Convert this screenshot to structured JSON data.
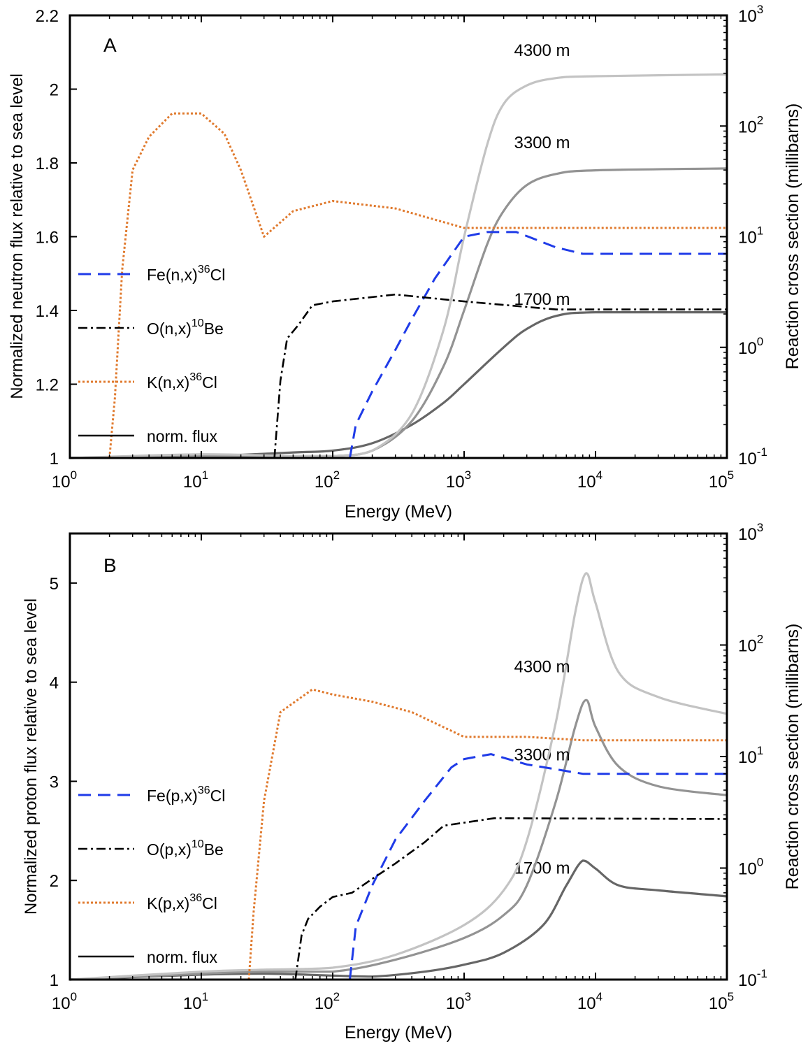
{
  "chart_data": [
    {
      "type": "line",
      "panel_label": "A",
      "xlabel": "Energy (MeV)",
      "ylabel": "Normalized neutron flux relative to sea level",
      "y2label": "Reaction cross section (millibarns)",
      "x_scale": "log",
      "xlim": [
        1,
        100000
      ],
      "ylim": [
        1,
        2.2
      ],
      "y2_scale": "log",
      "y2lim": [
        0.1,
        1000
      ],
      "x_ticks": [
        {
          "v": 1,
          "m": "10",
          "e": "0"
        },
        {
          "v": 10,
          "m": "10",
          "e": "1"
        },
        {
          "v": 100,
          "m": "10",
          "e": "2"
        },
        {
          "v": 1000,
          "m": "10",
          "e": "3"
        },
        {
          "v": 10000,
          "m": "10",
          "e": "4"
        },
        {
          "v": 100000,
          "m": "10",
          "e": "5"
        }
      ],
      "y_ticks": [
        {
          "v": 1,
          "t": "1"
        },
        {
          "v": 1.2,
          "t": "1.2"
        },
        {
          "v": 1.4,
          "t": "1.4"
        },
        {
          "v": 1.6,
          "t": "1.6"
        },
        {
          "v": 1.8,
          "t": "1.8"
        },
        {
          "v": 2,
          "t": "2"
        },
        {
          "v": 2.2,
          "t": "2.2"
        }
      ],
      "y2_ticks": [
        {
          "v": 0.1,
          "m": "10",
          "e": "-1"
        },
        {
          "v": 1,
          "m": "10",
          "e": "0"
        },
        {
          "v": 10,
          "m": "10",
          "e": "1"
        },
        {
          "v": 100,
          "m": "10",
          "e": "2"
        },
        {
          "v": 1000,
          "m": "10",
          "e": "3"
        }
      ],
      "legend": [
        {
          "base": "Fe(n,x)",
          "sup": "36",
          "tail": "Cl",
          "style": "dashed",
          "color": "#1f3be8"
        },
        {
          "base": "O(n,x)",
          "sup": "10",
          "tail": "Be",
          "style": "dashdot",
          "color": "#000000"
        },
        {
          "base": "K(n,x)",
          "sup": "36",
          "tail": "Cl",
          "style": "dotted",
          "color": "#e07a2e"
        },
        {
          "base": "norm. flux",
          "sup": "",
          "tail": "",
          "style": "solid",
          "color": "#000000"
        }
      ],
      "series": [
        {
          "name": "1700 m",
          "axis": "left",
          "style": "solid",
          "color": "#666666",
          "label_x": 2400,
          "label_y": 1.415,
          "x": [
            1,
            10,
            50,
            100,
            200,
            400,
            700,
            1000,
            2000,
            3000,
            5000,
            10000,
            100000
          ],
          "y": [
            1,
            1.005,
            1.015,
            1.02,
            1.04,
            1.09,
            1.15,
            1.2,
            1.3,
            1.35,
            1.385,
            1.395,
            1.395
          ]
        },
        {
          "name": "3300 m",
          "axis": "left",
          "style": "solid",
          "color": "#939393",
          "label_x": 2400,
          "label_y": 1.84,
          "x": [
            1,
            10,
            50,
            100,
            200,
            400,
            700,
            1000,
            1500,
            2000,
            3000,
            5000,
            10000,
            100000
          ],
          "y": [
            1,
            1.005,
            1.005,
            1.005,
            1.02,
            1.1,
            1.25,
            1.4,
            1.58,
            1.67,
            1.74,
            1.77,
            1.78,
            1.785
          ]
        },
        {
          "name": "4300 m",
          "axis": "left",
          "style": "solid",
          "color": "#c3c3c3",
          "label_x": 2400,
          "label_y": 2.09,
          "x": [
            1,
            10,
            50,
            100,
            200,
            400,
            700,
            1000,
            1500,
            2000,
            3000,
            5000,
            10000,
            100000
          ],
          "y": [
            1,
            1.01,
            1.005,
            1.005,
            1.02,
            1.12,
            1.35,
            1.6,
            1.85,
            1.96,
            2.01,
            2.03,
            2.035,
            2.04
          ]
        },
        {
          "name": "Fe(n,x)36Cl",
          "axis": "right",
          "style": "dashed",
          "color": "#1f3be8",
          "x": [
            135,
            150,
            200,
            300,
            400,
            600,
            1000,
            1500,
            2500,
            5000,
            8000,
            100000
          ],
          "y": [
            0.1,
            0.2,
            0.4,
            0.95,
            1.8,
            4.2,
            10,
            11,
            11,
            8,
            7,
            7
          ]
        },
        {
          "name": "O(n,x)10Be",
          "axis": "right",
          "style": "dashdot",
          "color": "#000000",
          "x": [
            36,
            40,
            45,
            55,
            70,
            100,
            300,
            1000,
            5000,
            100000
          ],
          "y": [
            0.1,
            0.5,
            1.2,
            1.6,
            2.4,
            2.6,
            3,
            2.6,
            2.2,
            2.2
          ]
        },
        {
          "name": "K(n,x)36Cl",
          "axis": "right",
          "style": "dotted",
          "color": "#e07a2e",
          "x": [
            2,
            2.2,
            2.5,
            3,
            4,
            6,
            10,
            15,
            20,
            30,
            50,
            100,
            300,
            1000,
            100000
          ],
          "y": [
            0.1,
            0.35,
            5,
            40,
            80,
            130,
            130,
            85,
            40,
            10,
            17,
            21,
            18,
            12,
            12
          ]
        }
      ]
    },
    {
      "type": "line",
      "panel_label": "B",
      "xlabel": "Energy (MeV)",
      "ylabel": "Normalized proton flux relative to sea level",
      "y2label": "Reaction cross section (millibarns)",
      "x_scale": "log",
      "xlim": [
        1,
        100000
      ],
      "ylim": [
        1,
        5.5
      ],
      "y2_scale": "log",
      "y2lim": [
        0.1,
        1000
      ],
      "x_ticks": [
        {
          "v": 1,
          "m": "10",
          "e": "0"
        },
        {
          "v": 10,
          "m": "10",
          "e": "1"
        },
        {
          "v": 100,
          "m": "10",
          "e": "2"
        },
        {
          "v": 1000,
          "m": "10",
          "e": "3"
        },
        {
          "v": 10000,
          "m": "10",
          "e": "4"
        },
        {
          "v": 100000,
          "m": "10",
          "e": "5"
        }
      ],
      "y_ticks": [
        {
          "v": 1,
          "t": "1"
        },
        {
          "v": 2,
          "t": "2"
        },
        {
          "v": 3,
          "t": "3"
        },
        {
          "v": 4,
          "t": "4"
        },
        {
          "v": 5,
          "t": "5"
        }
      ],
      "y2_ticks": [
        {
          "v": 0.1,
          "m": "10",
          "e": "-1"
        },
        {
          "v": 1,
          "m": "10",
          "e": "0"
        },
        {
          "v": 10,
          "m": "10",
          "e": "1"
        },
        {
          "v": 100,
          "m": "10",
          "e": "2"
        },
        {
          "v": 1000,
          "m": "10",
          "e": "3"
        }
      ],
      "legend": [
        {
          "base": "Fe(p,x)",
          "sup": "36",
          "tail": "Cl",
          "style": "dashed",
          "color": "#1f3be8"
        },
        {
          "base": "O(p,x)",
          "sup": "10",
          "tail": "Be",
          "style": "dashdot",
          "color": "#000000"
        },
        {
          "base": "K(p,x)",
          "sup": "36",
          "tail": "Cl",
          "style": "dotted",
          "color": "#e07a2e"
        },
        {
          "base": "norm. flux",
          "sup": "",
          "tail": "",
          "style": "solid",
          "color": "#000000"
        }
      ],
      "series": [
        {
          "name": "1700 m",
          "axis": "left",
          "style": "solid",
          "color": "#666666",
          "label_x": 2400,
          "label_y": 2.07,
          "x": [
            1,
            10,
            30,
            100,
            200,
            500,
            1000,
            2000,
            4000,
            6000,
            8000,
            10000,
            15000,
            30000,
            100000
          ],
          "y": [
            1,
            1.05,
            1.06,
            1.04,
            1.03,
            1.08,
            1.15,
            1.27,
            1.55,
            1.95,
            2.2,
            2.12,
            1.95,
            1.9,
            1.84
          ]
        },
        {
          "name": "3300 m",
          "axis": "left",
          "style": "solid",
          "color": "#939393",
          "label_x": 2400,
          "label_y": 3.21,
          "x": [
            1,
            10,
            30,
            100,
            300,
            1000,
            2000,
            3000,
            5000,
            7000,
            8500,
            10000,
            15000,
            30000,
            100000
          ],
          "y": [
            1,
            1.06,
            1.08,
            1.08,
            1.2,
            1.42,
            1.65,
            1.95,
            2.8,
            3.55,
            3.82,
            3.55,
            3.15,
            2.95,
            2.86
          ]
        },
        {
          "name": "4300 m",
          "axis": "left",
          "style": "solid",
          "color": "#c3c3c3",
          "label_x": 2400,
          "label_y": 4.1,
          "x": [
            1,
            10,
            30,
            100,
            300,
            1000,
            2000,
            3000,
            5000,
            7000,
            8500,
            10000,
            15000,
            30000,
            100000
          ],
          "y": [
            1,
            1.08,
            1.1,
            1.12,
            1.25,
            1.55,
            1.9,
            2.4,
            3.6,
            4.7,
            5.1,
            4.8,
            4.1,
            3.85,
            3.68
          ]
        },
        {
          "name": "Fe(p,x)36Cl",
          "axis": "right",
          "style": "dashed",
          "color": "#1f3be8",
          "x": [
            135,
            150,
            200,
            300,
            500,
            800,
            1000,
            1600,
            3000,
            8000,
            100000
          ],
          "y": [
            0.1,
            0.3,
            0.7,
            1.8,
            4,
            8,
            9.5,
            10.5,
            8.5,
            7,
            7
          ]
        },
        {
          "name": "O(p,x)10Be",
          "axis": "right",
          "style": "dashdot",
          "color": "#000000",
          "x": [
            52,
            58,
            65,
            80,
            100,
            140,
            200,
            300,
            500,
            700,
            1700,
            100000
          ],
          "y": [
            0.1,
            0.25,
            0.35,
            0.45,
            0.55,
            0.6,
            0.8,
            1.1,
            1.7,
            2.4,
            2.8,
            2.75
          ]
        },
        {
          "name": "K(p,x)36Cl",
          "axis": "right",
          "style": "dotted",
          "color": "#e07a2e",
          "x": [
            23,
            25,
            30,
            40,
            70,
            100,
            200,
            400,
            1000,
            3000,
            8000,
            100000
          ],
          "y": [
            0.1,
            0.4,
            4,
            25,
            40,
            36,
            31,
            25,
            15,
            15,
            14,
            14
          ]
        }
      ]
    }
  ]
}
